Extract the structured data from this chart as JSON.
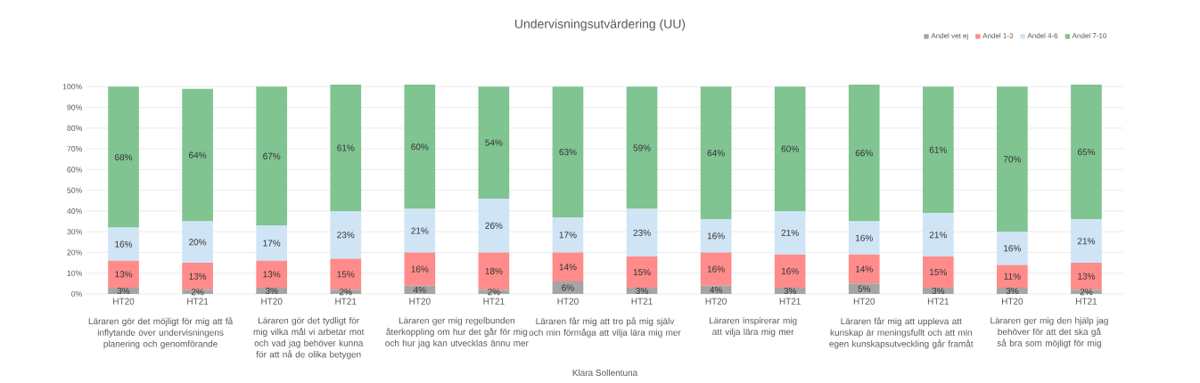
{
  "chart_data": {
    "type": "bar",
    "stacked": true,
    "title": "Undervisningsutvärdering (UU)",
    "categories": [
      "HT20",
      "HT21",
      "HT20",
      "HT21",
      "HT20",
      "HT21",
      "HT20",
      "HT21",
      "HT20",
      "HT21",
      "HT20",
      "HT21",
      "HT20",
      "HT21"
    ],
    "series": [
      {
        "name": "Andel vet ej",
        "color": "#a5a5a5",
        "values": [
          3,
          2,
          3,
          2,
          4,
          2,
          6,
          3,
          4,
          3,
          5,
          3,
          3,
          2
        ],
        "value_labels": [
          "3%",
          "2%",
          "3%",
          "2%",
          "4%",
          "2%",
          "6%",
          "3%",
          "4%",
          "3%",
          "5%",
          "3%",
          "3%",
          "2%"
        ]
      },
      {
        "name": "Andel 1-3",
        "color": "#ff8b8b",
        "values": [
          13,
          13,
          13,
          15,
          16,
          18,
          14,
          15,
          16,
          16,
          14,
          15,
          11,
          13
        ],
        "value_labels": [
          "13%",
          "13%",
          "13%",
          "15%",
          "16%",
          "18%",
          "14%",
          "15%",
          "16%",
          "16%",
          "14%",
          "15%",
          "11%",
          "13%"
        ]
      },
      {
        "name": "Andel 4-6",
        "color": "#cfe4f5",
        "values": [
          16,
          20,
          17,
          23,
          21,
          26,
          17,
          23,
          16,
          21,
          16,
          21,
          16,
          21
        ],
        "value_labels": [
          "16%",
          "20%",
          "17%",
          "23%",
          "21%",
          "26%",
          "17%",
          "23%",
          "16%",
          "21%",
          "16%",
          "21%",
          "16%",
          "21%"
        ]
      },
      {
        "name": "Andel 7-10",
        "color": "#7fc491",
        "values": [
          68,
          64,
          67,
          61,
          60,
          54,
          63,
          59,
          64,
          60,
          66,
          61,
          70,
          65
        ],
        "value_labels": [
          "68%",
          "64%",
          "67%",
          "61%",
          "60%",
          "54%",
          "63%",
          "59%",
          "64%",
          "60%",
          "66%",
          "61%",
          "70%",
          "65%"
        ]
      }
    ],
    "ylim": [
      0,
      101
    ],
    "yticks": [
      {
        "value": 0,
        "label": "0%"
      },
      {
        "value": 10,
        "label": "10%"
      },
      {
        "value": 20,
        "label": "20%"
      },
      {
        "value": 30,
        "label": "30%"
      },
      {
        "value": 40,
        "label": "40%"
      },
      {
        "value": 50,
        "label": "50%"
      },
      {
        "value": 60,
        "label": "60%"
      },
      {
        "value": 70,
        "label": "70%"
      },
      {
        "value": 80,
        "label": "80%"
      },
      {
        "value": 90,
        "label": "90%"
      },
      {
        "value": 100,
        "label": "100%"
      }
    ],
    "grid": "y",
    "legend": "top right",
    "annotations": [
      "Läraren gör det möjligt för mig att få inflytande över undervisningens planering och genomförande",
      "Läraren gör det tydligt för mig vilka mål vi arbetar mot och vad jag behöver kunna för att nå de olika betygen",
      "Läraren ger mig regelbunden återkoppling om hur det går för mig och hur jag kan utvecklas ännu mer",
      "Läraren får mig att tro på mig själv och min förmåga att vilja lära mig mer",
      "Läraren inspirerar mig att vilja lära mig mer",
      "Läraren får mig att uppleva att kunskap är meningsfullt och att min egen kunskapsutveckling går framåt",
      "Läraren ger mig den hjälp jag behöver för att det ska gå så bra som möjligt för mig",
      "Klara Sollentuna"
    ]
  }
}
